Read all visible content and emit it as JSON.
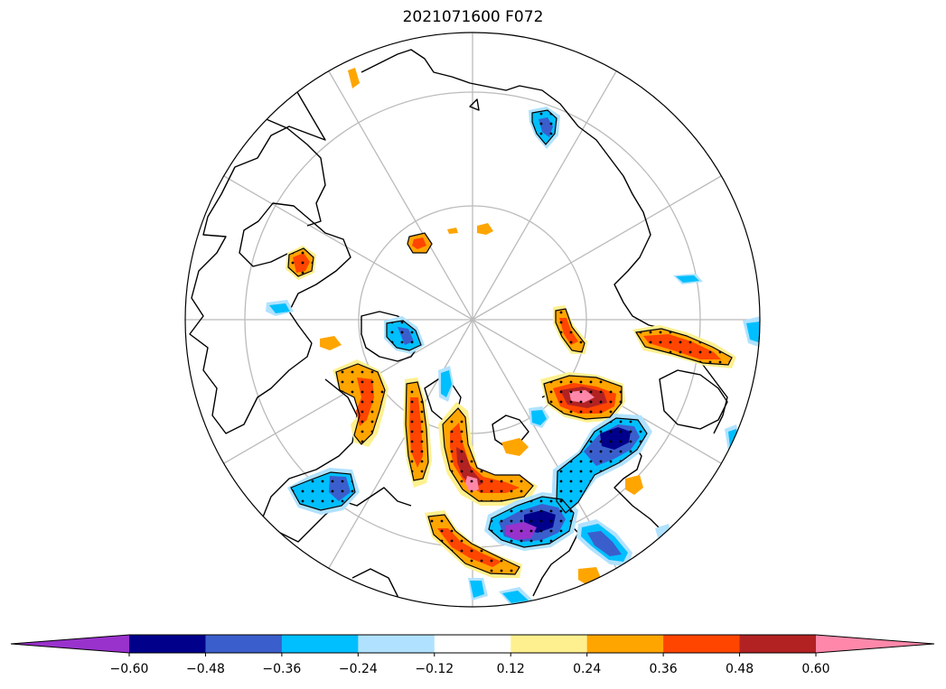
{
  "title": "2021071600 F072",
  "colorbar": {
    "colors": [
      "#9932cc",
      "#00008b",
      "#3a5fcd",
      "#00bfff",
      "#b0e2ff",
      "#ffffff",
      "#fff08f",
      "#ffa500",
      "#ff4500",
      "#b22222",
      "#ff88aa"
    ],
    "extend": "both",
    "tick_labels": [
      "−0.60",
      "−0.48",
      "−0.36",
      "−0.24",
      "−0.12",
      "0.12",
      "0.24",
      "0.36",
      "0.48",
      "0.60"
    ]
  },
  "map": {
    "projection": "north-polar-stereographic",
    "land_outline_color": "#000000",
    "graticule_color": "#bbbbbb",
    "stippling": "significant regions dotted"
  }
}
